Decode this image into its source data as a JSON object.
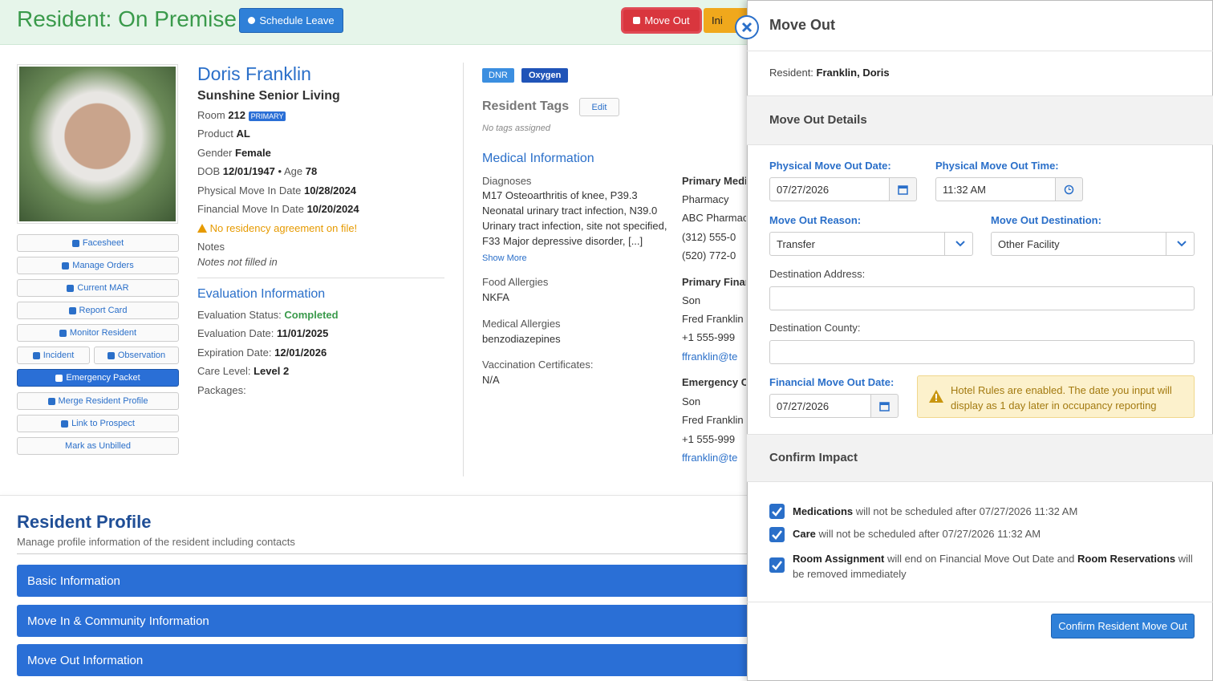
{
  "header": {
    "title": "Resident: On Premise",
    "schedule_leave": "Schedule Leave",
    "move_out": "Move Out",
    "next_button": "Ini"
  },
  "resident": {
    "name": "Doris Franklin",
    "community": "Sunshine Senior Living",
    "room_label": "Room",
    "room": "212",
    "room_badge": "PRIMARY",
    "product_label": "Product",
    "product": "AL",
    "gender_label": "Gender",
    "gender": "Female",
    "dob_label": "DOB",
    "dob": "12/01/1947",
    "separator": "•",
    "age_label": "Age",
    "age": "78",
    "physical_move_in_label": "Physical Move In Date",
    "physical_move_in": "10/28/2024",
    "financial_move_in_label": "Financial Move In Date",
    "financial_move_in": "10/20/2024",
    "warning": "No residency agreement on file!",
    "notes_label": "Notes",
    "notes": "Notes not filled in"
  },
  "actions": [
    "Facesheet",
    "Manage Orders",
    "Current MAR",
    "Report Card",
    "Monitor Resident",
    "Incident",
    "Observation",
    "Emergency Packet",
    "Merge Resident Profile",
    "Link to Prospect",
    "Mark as Unbilled"
  ],
  "evaluation": {
    "title": "Evaluation Information",
    "rows": [
      [
        "Evaluation Status:",
        "Completed"
      ],
      [
        "Evaluation Date:",
        "11/01/2025"
      ],
      [
        "Expiration Date:",
        "12/01/2026"
      ],
      [
        "Care Level:",
        "Level 2"
      ]
    ],
    "packages_label": "Packages:"
  },
  "tags": {
    "badges": [
      "DNR",
      "Oxygen"
    ],
    "title": "Resident Tags",
    "edit": "Edit",
    "empty": "No tags assigned"
  },
  "medical": {
    "title": "Medical Information",
    "diagnoses_label": "Diagnoses",
    "diagnoses": [
      "M17 Osteoarthritis of knee, P39.3",
      "Neonatal urinary tract infection, N39.0",
      "Urinary tract infection, site not specified,",
      "F33 Major depressive disorder, [...]"
    ],
    "show_more": "Show More",
    "food_label": "Food Allergies",
    "food": "NKFA",
    "med_label": "Medical Allergies",
    "med": "benzodiazepines",
    "vacc_label": "Vaccination Certificates:",
    "vacc": "N/A"
  },
  "contacts_column": [
    {
      "heading": "Primary Medi",
      "lines": [
        "Pharmacy",
        "ABC Pharmac",
        "(312) 555-0",
        "(520) 772-0"
      ]
    },
    {
      "heading": "Primary Finar",
      "lines": [
        "Son",
        "Fred Franklin",
        "+1 555-999",
        "ffranklin@te"
      ]
    },
    {
      "heading": "Emergency C",
      "lines": [
        "Son",
        "Fred Franklin",
        "+1 555-999",
        "ffranklin@te"
      ]
    }
  ],
  "profile": {
    "title": "Resident Profile",
    "subtitle": "Manage profile information of the resident including contacts",
    "sections": [
      "Basic Information",
      "Move In & Community Information",
      "Move Out Information"
    ]
  },
  "panel": {
    "title": "Move Out",
    "resident_label": "Resident:",
    "resident": "Franklin, Doris",
    "details_title": "Move Out Details",
    "physical_date_label": "Physical Move Out Date:",
    "physical_date": "07/27/2026",
    "physical_time_label": "Physical Move Out Time:",
    "physical_time": "11:32 AM",
    "reason_label": "Move Out Reason:",
    "reason": "Transfer",
    "destination_label": "Move Out Destination:",
    "destination": "Other Facility",
    "address_label": "Destination Address:",
    "county_label": "Destination County:",
    "financial_date_label": "Financial Move Out Date:",
    "financial_date": "07/27/2026",
    "alert": "Hotel Rules are enabled. The date you input will display as 1 day later in occupancy reporting",
    "impact_title": "Confirm Impact",
    "checks": [
      {
        "strong": "Medications",
        "text": "will not be scheduled after 07/27/2026 11:32 AM"
      },
      {
        "strong": "Care",
        "text": "will not be scheduled after 07/27/2026 11:32 AM"
      },
      {
        "strong": "Room Assignment",
        "text": "will end on Financial Move Out Date and",
        "strong2": "Room Reservations",
        "text2": "will be removed immediately"
      }
    ],
    "confirm": "Confirm Resident Move Out"
  }
}
